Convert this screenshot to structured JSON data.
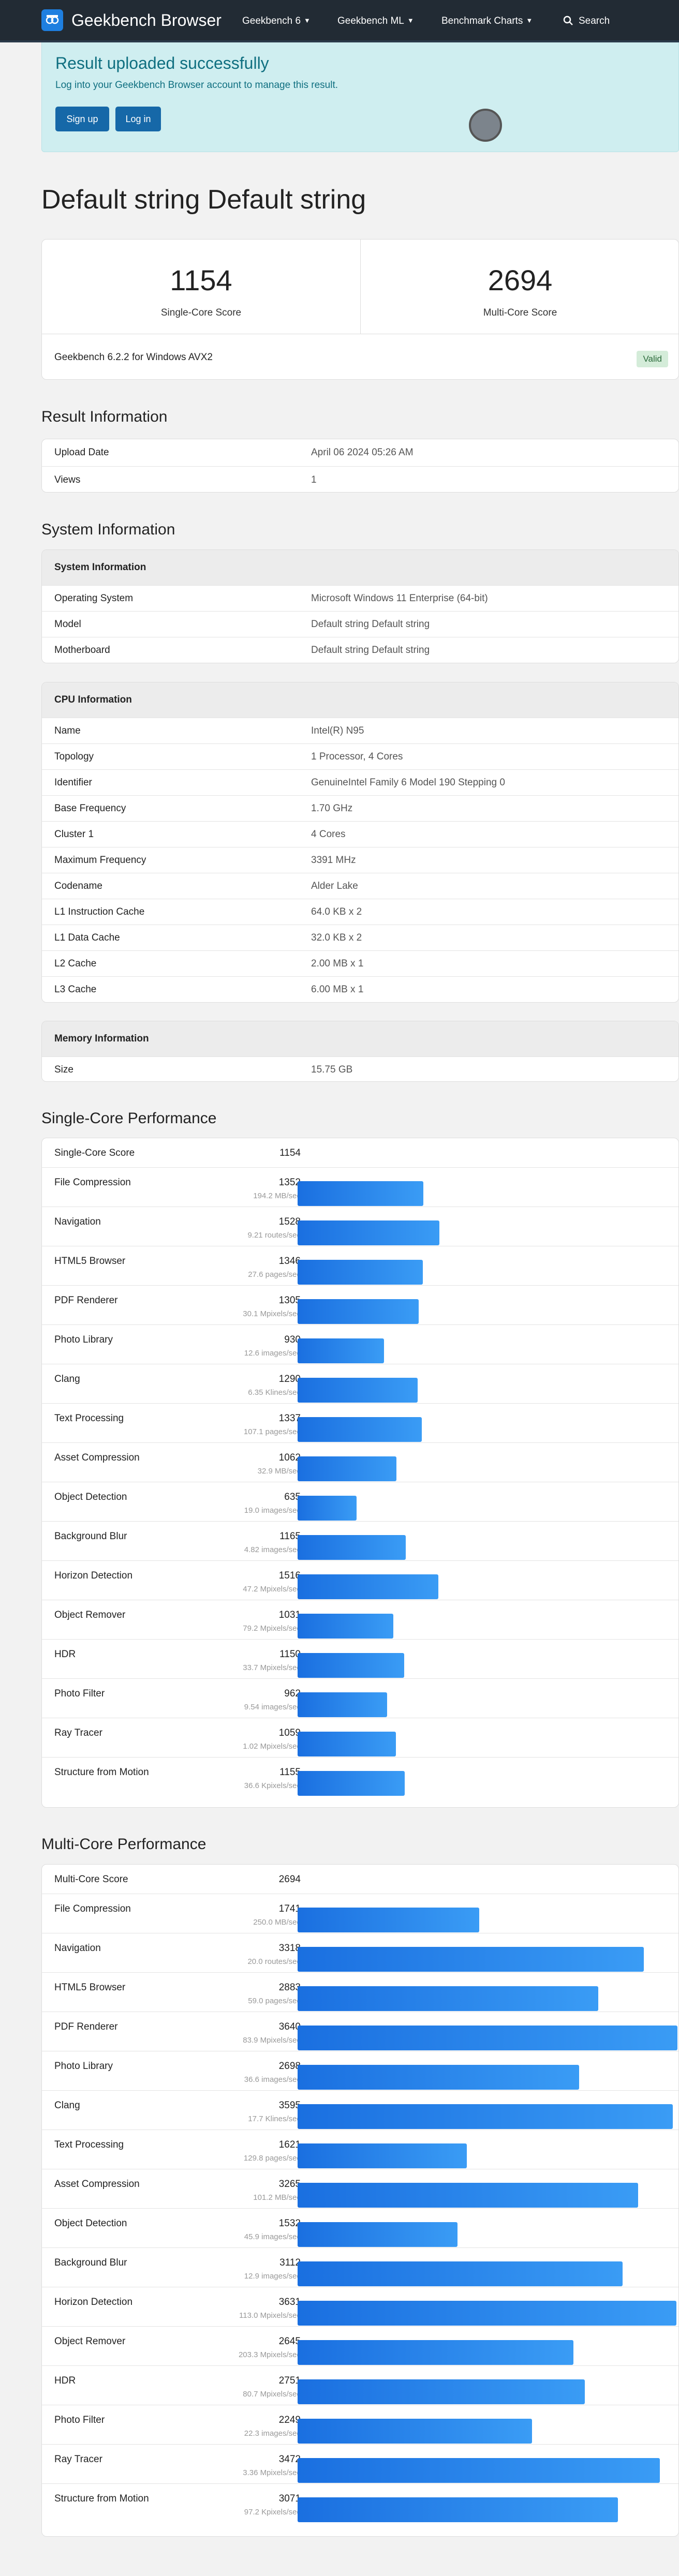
{
  "nav": {
    "brand": "Geekbench Browser",
    "items": [
      "Geekbench 6",
      "Geekbench ML",
      "Benchmark Charts"
    ],
    "search": "Search"
  },
  "alert": {
    "title": "Result uploaded successfully",
    "text": "Log into your Geekbench Browser account to manage this result.",
    "signup": "Sign up",
    "login": "Log in"
  },
  "page_title": "Default string Default string",
  "scores": {
    "single": "1154",
    "single_label": "Single-Core Score",
    "multi": "2694",
    "multi_label": "Multi-Core Score",
    "version": "Geekbench 6.2.2 for Windows AVX2",
    "valid": "Valid"
  },
  "result_info": {
    "title": "Result Information",
    "rows": [
      {
        "k": "Upload Date",
        "v": "April 06 2024 05:26 AM"
      },
      {
        "k": "Views",
        "v": "1"
      }
    ]
  },
  "system_info": {
    "title": "System Information",
    "system": {
      "head": "System Information",
      "rows": [
        {
          "k": "Operating System",
          "v": "Microsoft Windows 11 Enterprise (64-bit)"
        },
        {
          "k": "Model",
          "v": "Default string Default string"
        },
        {
          "k": "Motherboard",
          "v": "Default string Default string"
        }
      ]
    },
    "cpu": {
      "head": "CPU Information",
      "rows": [
        {
          "k": "Name",
          "v": "Intel(R) N95"
        },
        {
          "k": "Topology",
          "v": "1 Processor, 4 Cores"
        },
        {
          "k": "Identifier",
          "v": "GenuineIntel Family 6 Model 190 Stepping 0"
        },
        {
          "k": "Base Frequency",
          "v": "1.70 GHz"
        },
        {
          "k": "Cluster 1",
          "v": "4 Cores"
        },
        {
          "k": "Maximum Frequency",
          "v": "3391 MHz"
        },
        {
          "k": "Codename",
          "v": "Alder Lake"
        },
        {
          "k": "L1 Instruction Cache",
          "v": "64.0 KB x 2"
        },
        {
          "k": "L1 Data Cache",
          "v": "32.0 KB x 2"
        },
        {
          "k": "L2 Cache",
          "v": "2.00 MB x 1"
        },
        {
          "k": "L3 Cache",
          "v": "6.00 MB x 1"
        }
      ]
    },
    "memory": {
      "head": "Memory Information",
      "rows": [
        {
          "k": "Size",
          "v": "15.75 GB"
        }
      ]
    }
  },
  "single_core": {
    "title": "Single-Core Performance",
    "summary_label": "Single-Core Score",
    "summary_value": "1154",
    "benchmarks": [
      {
        "name": "File Compression",
        "score": 1352,
        "rate": "194.2 MB/sec"
      },
      {
        "name": "Navigation",
        "score": 1528,
        "rate": "9.21 routes/sec"
      },
      {
        "name": "HTML5 Browser",
        "score": 1346,
        "rate": "27.6 pages/sec"
      },
      {
        "name": "PDF Renderer",
        "score": 1305,
        "rate": "30.1 Mpixels/sec"
      },
      {
        "name": "Photo Library",
        "score": 930,
        "rate": "12.6 images/sec"
      },
      {
        "name": "Clang",
        "score": 1290,
        "rate": "6.35 Klines/sec"
      },
      {
        "name": "Text Processing",
        "score": 1337,
        "rate": "107.1 pages/sec"
      },
      {
        "name": "Asset Compression",
        "score": 1062,
        "rate": "32.9 MB/sec"
      },
      {
        "name": "Object Detection",
        "score": 635,
        "rate": "19.0 images/sec"
      },
      {
        "name": "Background Blur",
        "score": 1165,
        "rate": "4.82 images/sec"
      },
      {
        "name": "Horizon Detection",
        "score": 1516,
        "rate": "47.2 Mpixels/sec"
      },
      {
        "name": "Object Remover",
        "score": 1031,
        "rate": "79.2 Mpixels/sec"
      },
      {
        "name": "HDR",
        "score": 1150,
        "rate": "33.7 Mpixels/sec"
      },
      {
        "name": "Photo Filter",
        "score": 962,
        "rate": "9.54 images/sec"
      },
      {
        "name": "Ray Tracer",
        "score": 1059,
        "rate": "1.02 Mpixels/sec"
      },
      {
        "name": "Structure from Motion",
        "score": 1155,
        "rate": "36.6 Kpixels/sec"
      }
    ]
  },
  "multi_core": {
    "title": "Multi-Core Performance",
    "summary_label": "Multi-Core Score",
    "summary_value": "2694",
    "benchmarks": [
      {
        "name": "File Compression",
        "score": 1741,
        "rate": "250.0 MB/sec"
      },
      {
        "name": "Navigation",
        "score": 3318,
        "rate": "20.0 routes/sec"
      },
      {
        "name": "HTML5 Browser",
        "score": 2883,
        "rate": "59.0 pages/sec"
      },
      {
        "name": "PDF Renderer",
        "score": 3640,
        "rate": "83.9 Mpixels/sec"
      },
      {
        "name": "Photo Library",
        "score": 2698,
        "rate": "36.6 images/sec"
      },
      {
        "name": "Clang",
        "score": 3595,
        "rate": "17.7 Klines/sec"
      },
      {
        "name": "Text Processing",
        "score": 1621,
        "rate": "129.8 pages/sec"
      },
      {
        "name": "Asset Compression",
        "score": 3265,
        "rate": "101.2 MB/sec"
      },
      {
        "name": "Object Detection",
        "score": 1532,
        "rate": "45.9 images/sec"
      },
      {
        "name": "Background Blur",
        "score": 3112,
        "rate": "12.9 images/sec"
      },
      {
        "name": "Horizon Detection",
        "score": 3631,
        "rate": "113.0 Mpixels/sec"
      },
      {
        "name": "Object Remover",
        "score": 2645,
        "rate": "203.3 Mpixels/sec"
      },
      {
        "name": "HDR",
        "score": 2751,
        "rate": "80.7 Mpixels/sec"
      },
      {
        "name": "Photo Filter",
        "score": 2249,
        "rate": "22.3 images/sec"
      },
      {
        "name": "Ray Tracer",
        "score": 3472,
        "rate": "3.36 Mpixels/sec"
      },
      {
        "name": "Structure from Motion",
        "score": 3071,
        "rate": "97.2 Kpixels/sec"
      }
    ]
  }
}
